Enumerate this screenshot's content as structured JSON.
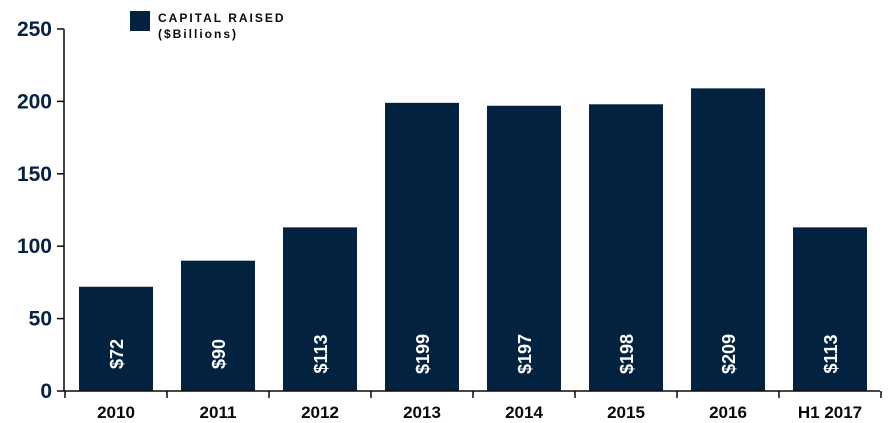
{
  "chart_data": {
    "type": "bar",
    "title": "",
    "xlabel": "",
    "ylabel": "",
    "categories": [
      "2010",
      "2011",
      "2012",
      "2013",
      "2014",
      "2015",
      "2016",
      "H1 2017"
    ],
    "series": [
      {
        "name": "CAPITAL RAISED",
        "unit": "($Billions)",
        "values": [
          72,
          90,
          113,
          199,
          197,
          198,
          209,
          113
        ],
        "labels": [
          "$72",
          "$90",
          "$113",
          "$199",
          "$197",
          "$198",
          "$209",
          "$113"
        ]
      }
    ],
    "yticks": [
      "0",
      "50",
      "100",
      "150",
      "200",
      "250"
    ],
    "ylim": [
      0,
      250
    ],
    "grid": false,
    "legend_position": "top-left",
    "colors": {
      "bar": "#022240",
      "axis": "#0a0a0a",
      "text": "#062240"
    }
  }
}
